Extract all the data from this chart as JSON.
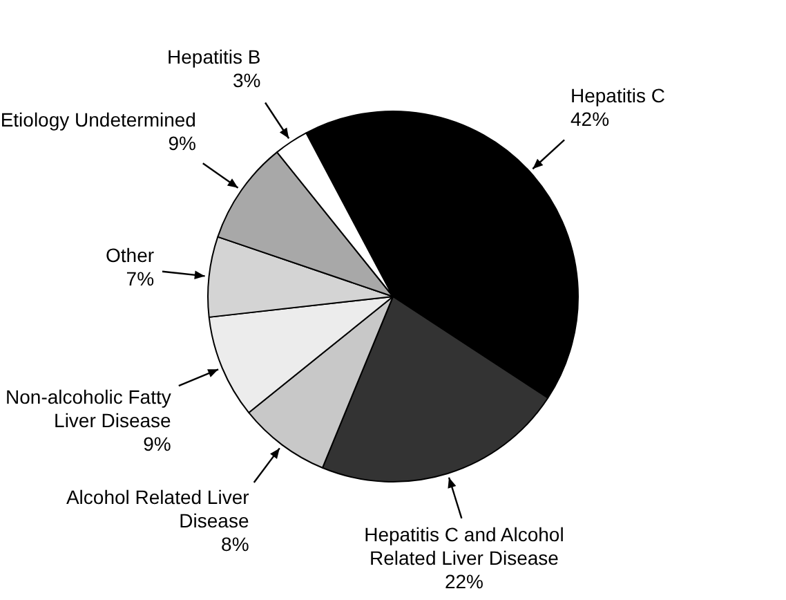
{
  "chart_data": {
    "type": "pie",
    "categories": [
      "Hepatitis C",
      "Hepatitis C and Alcohol Related Liver Disease",
      "Alcohol Related Liver Disease",
      "Non-alcoholic Fatty Liver Disease",
      "Other",
      "Etiology Undetermined",
      "Hepatitis B"
    ],
    "values": [
      42,
      22,
      8,
      9,
      7,
      9,
      3
    ],
    "value_labels": [
      "42%",
      "22%",
      "8%",
      "9%",
      "7%",
      "9%",
      "3%"
    ],
    "colors": [
      "#000000",
      "#333333",
      "#c8c8c8",
      "#ececec",
      "#d4d4d4",
      "#a8a8a8",
      "#ffffff"
    ],
    "legend": false
  }
}
